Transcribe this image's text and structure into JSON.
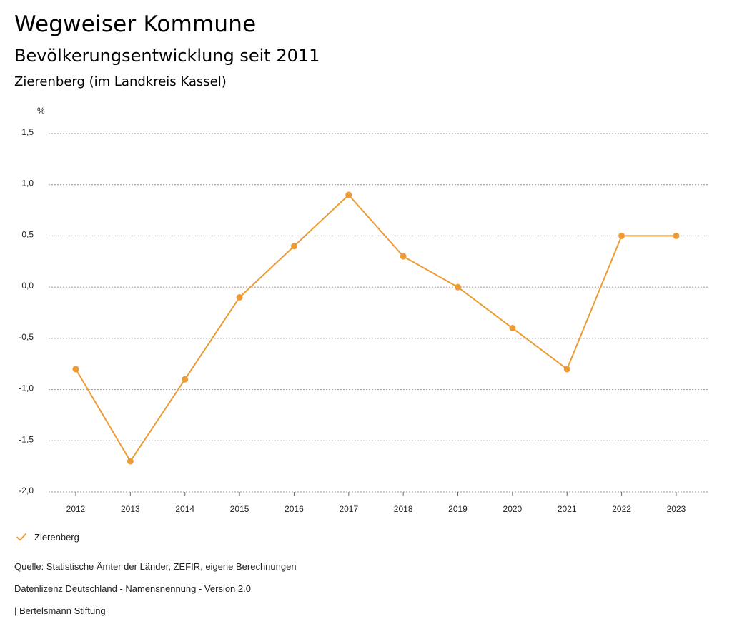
{
  "header": {
    "title": "Wegweiser Kommune",
    "subtitle": "Bevölkerungsentwicklung seit 2011",
    "region": "Zierenberg (im Landkreis Kassel)"
  },
  "chart_data": {
    "type": "line",
    "title": "Bevölkerungsentwicklung seit 2011",
    "ylabel": "%",
    "xlabel": "",
    "categories": [
      "2012",
      "2013",
      "2014",
      "2015",
      "2016",
      "2017",
      "2018",
      "2019",
      "2020",
      "2021",
      "2022",
      "2023"
    ],
    "series": [
      {
        "name": "Zierenberg",
        "color": "#ec9b36",
        "values": [
          -0.8,
          -1.7,
          -0.9,
          -0.1,
          0.4,
          0.9,
          0.3,
          0.0,
          -0.4,
          -0.8,
          0.5,
          0.5
        ]
      }
    ],
    "ylim": [
      -2.0,
      1.5
    ],
    "yticks": [
      1.5,
      1.0,
      0.5,
      0.0,
      -0.5,
      -1.0,
      -1.5,
      -2.0
    ],
    "ytick_labels": [
      "1,5",
      "1,0",
      "0,5",
      "0,0",
      "-0,5",
      "-1,0",
      "-1,5",
      "-2,0"
    ],
    "grid": true,
    "legend_position": "bottom-left"
  },
  "legend": {
    "label": "Zierenberg",
    "icon": "check-icon"
  },
  "footer": {
    "source": "Quelle: Statistische Ämter der Länder, ZEFIR, eigene Berechnungen",
    "license": "Datenlizenz Deutschland - Namensnennung - Version 2.0",
    "publisher": "| Bertelsmann Stiftung"
  }
}
